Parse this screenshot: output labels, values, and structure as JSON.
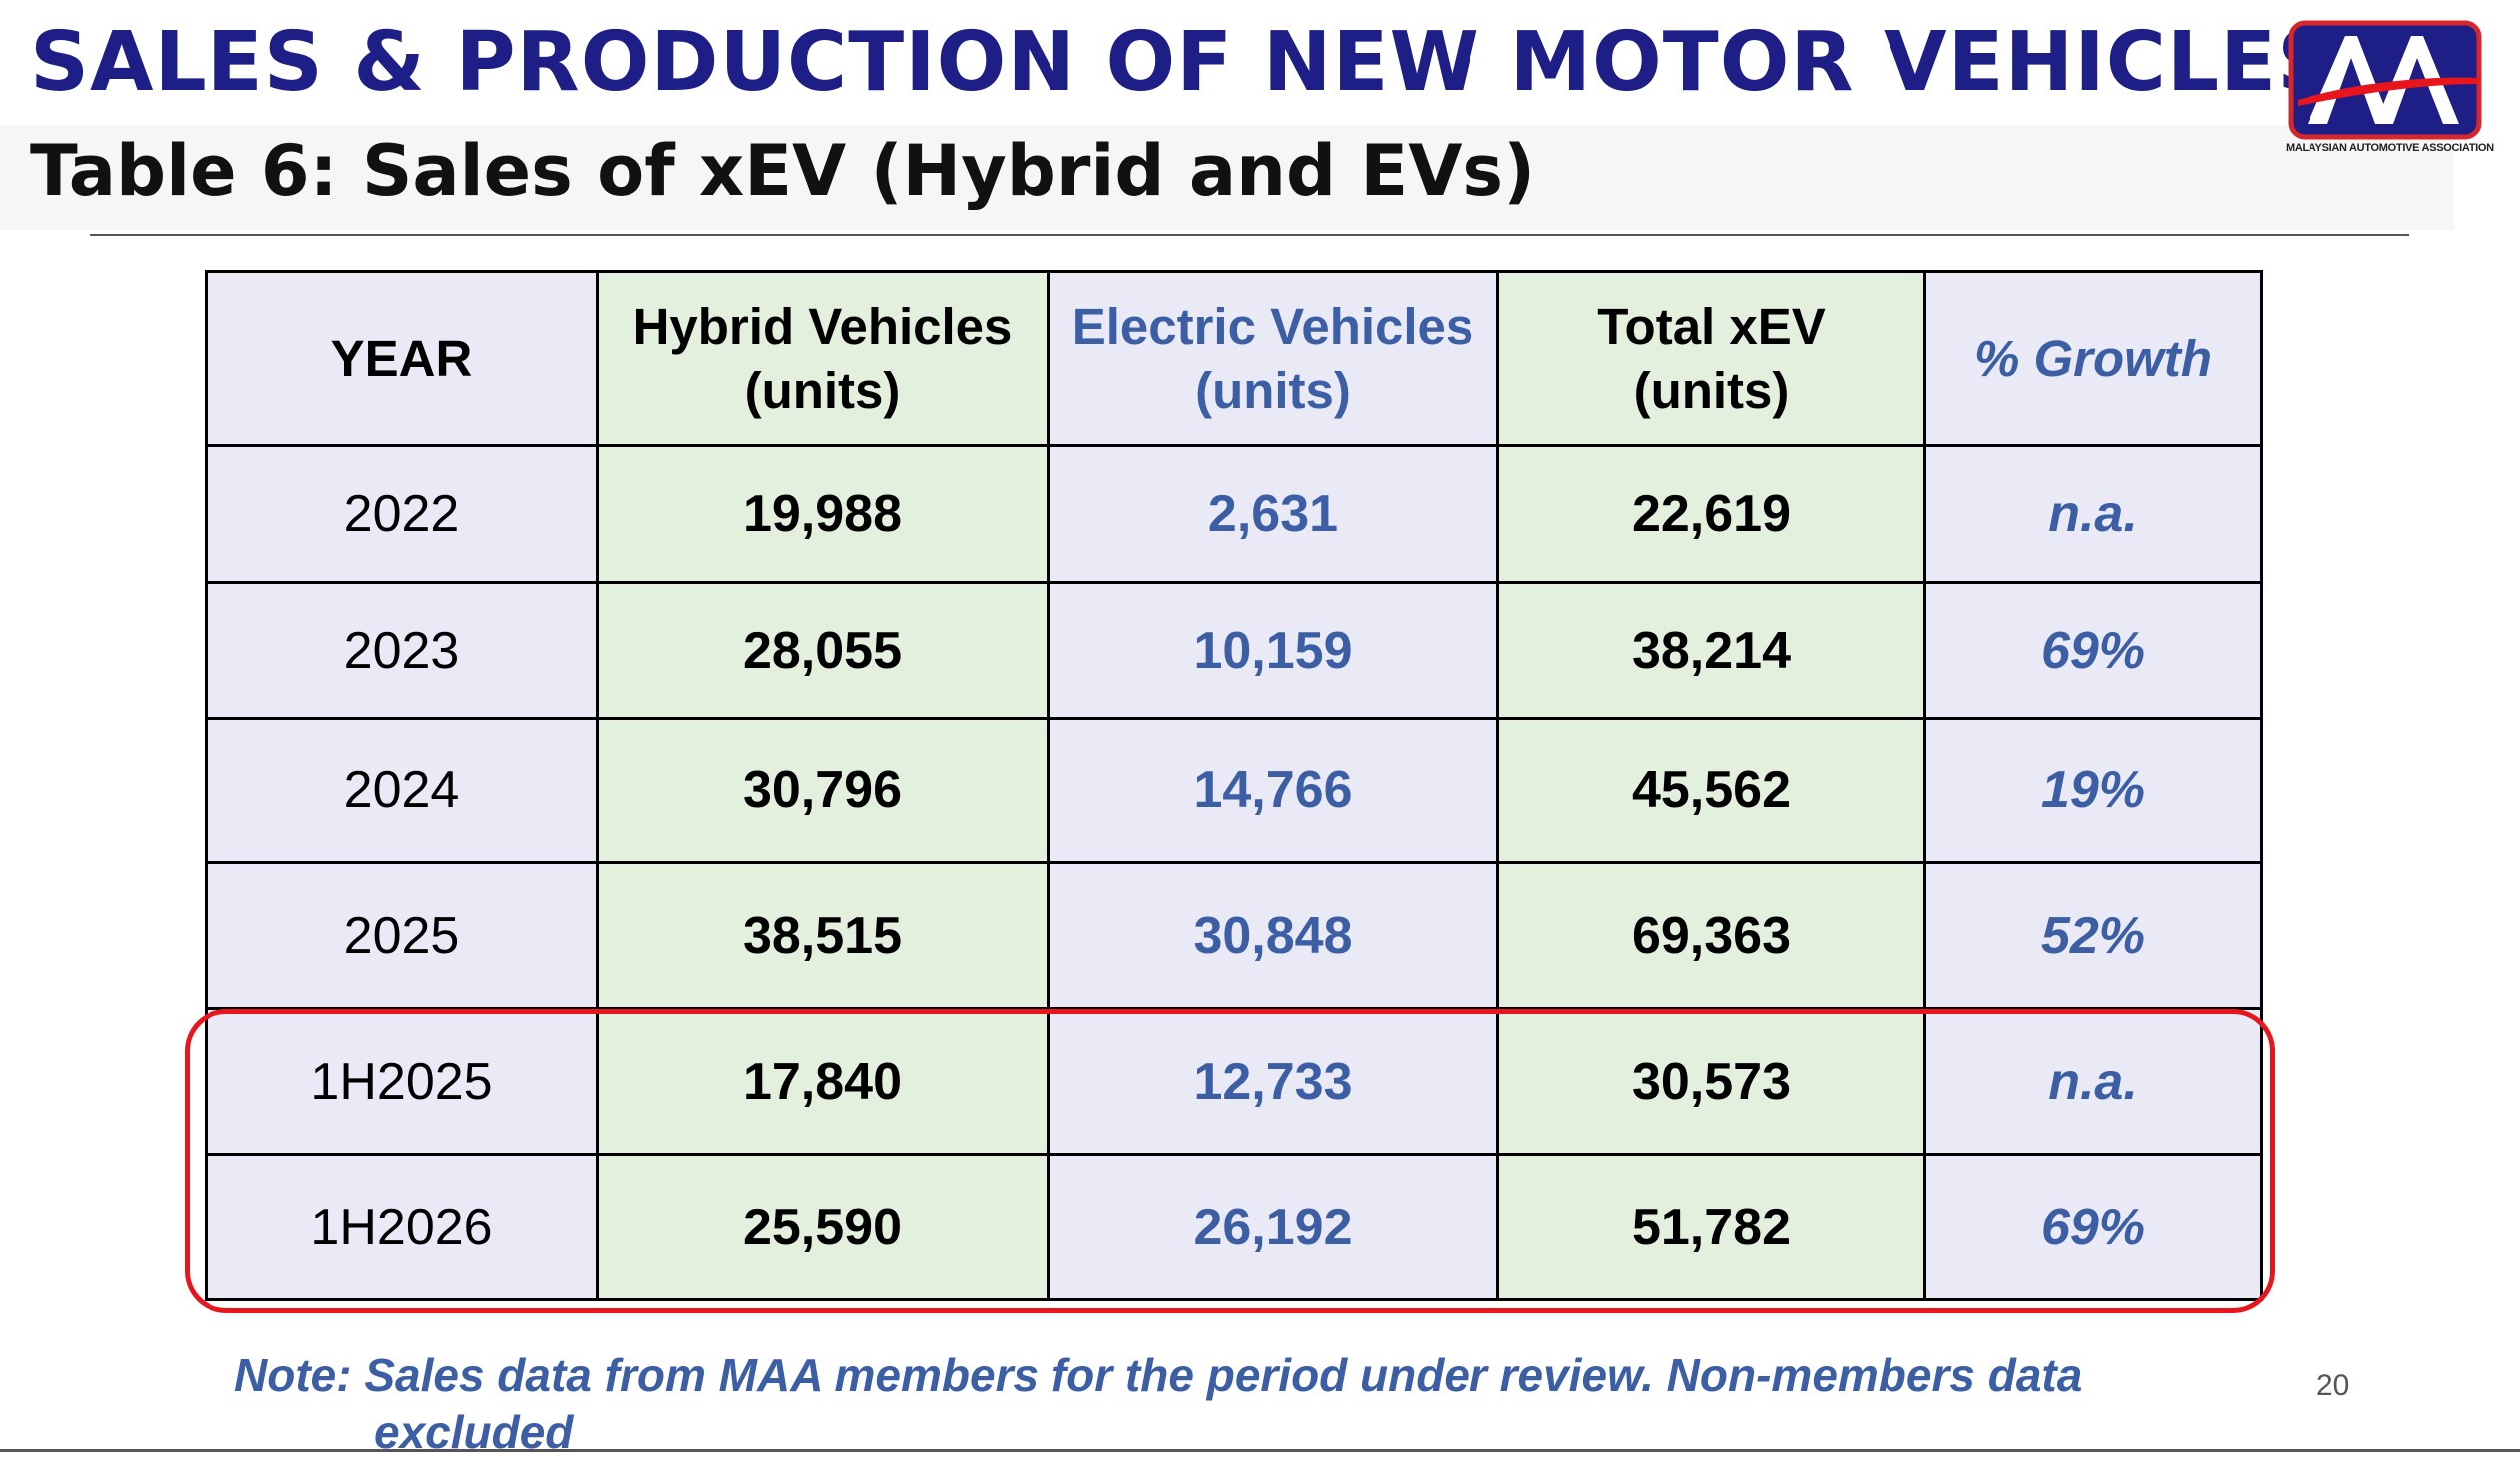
{
  "slide": {
    "title": "SALES & PRODUCTION OF NEW MOTOR VEHICLES",
    "subtitle": "Table 6: Sales of xEV (Hybrid and EVs)",
    "page_number": "20"
  },
  "logo": {
    "caption": "MALAYSIAN AUTOMOTIVE ASSOCIATION",
    "colors": {
      "frame": "#d8262b",
      "background": "#1d1f87",
      "letters": "#ffffff",
      "swoosh": "#e8161c"
    }
  },
  "table": {
    "headers": {
      "year": "YEAR",
      "hybrid_line1": "Hybrid Vehicles",
      "hybrid_line2": "(units)",
      "ev_line1": "Electric Vehicles",
      "ev_line2": "(units)",
      "total_line1": "Total xEV",
      "total_line2": "(units)",
      "growth": "% Growth"
    },
    "rows": [
      {
        "year": "2022",
        "hybrid": "19,988",
        "ev": "2,631",
        "total": "22,619",
        "growth": "n.a."
      },
      {
        "year": "2023",
        "hybrid": "28,055",
        "ev": "10,159",
        "total": "38,214",
        "growth": "69%"
      },
      {
        "year": "2024",
        "hybrid": "30,796",
        "ev": "14,766",
        "total": "45,562",
        "growth": "19%"
      },
      {
        "year": "2025",
        "hybrid": "38,515",
        "ev": "30,848",
        "total": "69,363",
        "growth": "52%"
      },
      {
        "year": "1H2025",
        "hybrid": "17,840",
        "ev": "12,733",
        "total": "30,573",
        "growth": "n.a."
      },
      {
        "year": "1H2026",
        "hybrid": "25,590",
        "ev": "26,192",
        "total": "51,782",
        "growth": "69%"
      }
    ],
    "highlighted_rows": [
      "1H2025",
      "1H2026"
    ],
    "colors": {
      "green_column": "#e3f0dd",
      "lavender_column": "#e9eaf5",
      "blue_text": "#3b5ea4",
      "highlight_border": "#e8161c"
    }
  },
  "note": {
    "line1": "Note: Sales data from MAA members for the period under review. Non-members data",
    "line2": "excluded"
  }
}
